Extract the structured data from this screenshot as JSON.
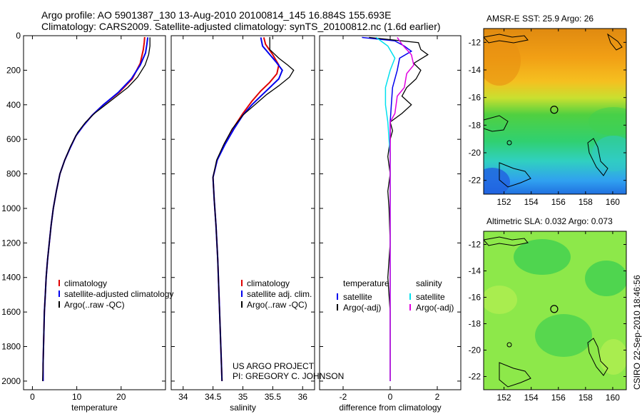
{
  "title_line1": "Argo profile: AO 5901387_130 13-Aug-2010 20100814_145 16.884S 155.693E",
  "title_line2": "Climatology: CARS2009. Satellite-adjusted climatology: synTS_20100812.nc (1.6d earlier)",
  "credit_line1": "US ARGO PROJECT",
  "credit_line2": "PI: GREGORY C. JOHNSON",
  "timestamp": "CSIRO 22-Sep-2010 18:46:56",
  "colors": {
    "climatology": "#e00000",
    "satellite": "#0000ee",
    "argo": "#000000",
    "satellite_sal": "#00e0ee",
    "argo_sal": "#e000e0"
  },
  "chart_data": [
    {
      "type": "line",
      "name": "temperature-profile",
      "xlabel": "temperature",
      "xlim": [
        -2,
        30
      ],
      "ylim": [
        2050,
        0
      ],
      "xticks": [
        0,
        10,
        20
      ],
      "yticks": [
        0,
        200,
        400,
        600,
        800,
        1000,
        1200,
        1400,
        1600,
        1800,
        2000
      ],
      "legend": {
        "entries": [
          "climatology",
          "satellite-adjusted climatology",
          "Argo(..raw -QC)"
        ],
        "colors": [
          "#e00000",
          "#0000ee",
          "#000000"
        ]
      },
      "series": [
        {
          "name": "climatology",
          "color": "#e00000",
          "width": 2,
          "points": [
            [
              25.3,
              8
            ],
            [
              25.2,
              40
            ],
            [
              25.0,
              80
            ],
            [
              24.3,
              160
            ],
            [
              22.5,
              250
            ],
            [
              19.5,
              330
            ],
            [
              16,
              400
            ],
            [
              13.5,
              460
            ],
            [
              11.5,
              520
            ],
            [
              9.8,
              580
            ],
            [
              8.5,
              650
            ],
            [
              7.3,
              720
            ],
            [
              6.2,
              800
            ],
            [
              5.4,
              900
            ],
            [
              4.7,
              1000
            ],
            [
              4.2,
              1100
            ],
            [
              3.8,
              1200
            ],
            [
              3.4,
              1300
            ],
            [
              3.1,
              1400
            ],
            [
              2.9,
              1500
            ],
            [
              2.7,
              1600
            ],
            [
              2.6,
              1700
            ],
            [
              2.5,
              1800
            ],
            [
              2.4,
              1900
            ],
            [
              2.4,
              2000
            ]
          ]
        },
        {
          "name": "satellite",
          "color": "#0000ee",
          "width": 2,
          "points": [
            [
              26.0,
              10
            ],
            [
              25.8,
              50
            ],
            [
              25.5,
              100
            ],
            [
              24.3,
              170
            ],
            [
              22.3,
              250
            ],
            [
              19.3,
              330
            ],
            [
              16,
              400
            ],
            [
              13.5,
              460
            ],
            [
              11.5,
              520
            ],
            [
              9.8,
              580
            ],
            [
              8.5,
              650
            ],
            [
              7.3,
              720
            ],
            [
              6.2,
              800
            ],
            [
              5.4,
              900
            ],
            [
              4.7,
              1000
            ],
            [
              4.2,
              1100
            ],
            [
              3.8,
              1200
            ],
            [
              3.4,
              1300
            ],
            [
              3.1,
              1400
            ],
            [
              2.9,
              1500
            ],
            [
              2.7,
              1600
            ],
            [
              2.6,
              1700
            ],
            [
              2.5,
              1800
            ],
            [
              2.4,
              1900
            ],
            [
              2.4,
              2000
            ]
          ]
        },
        {
          "name": "argo",
          "color": "#000000",
          "width": 1.3,
          "points": [
            [
              26.5,
              10
            ],
            [
              26.5,
              60
            ],
            [
              26.2,
              110
            ],
            [
              25.4,
              170
            ],
            [
              23.7,
              240
            ],
            [
              21.5,
              300
            ],
            [
              19,
              350
            ],
            [
              16.5,
              400
            ],
            [
              14,
              450
            ],
            [
              12,
              500
            ],
            [
              10.2,
              560
            ],
            [
              8.6,
              640
            ],
            [
              7.3,
              720
            ],
            [
              6.2,
              800
            ],
            [
              5.4,
              900
            ],
            [
              4.7,
              1000
            ],
            [
              4.2,
              1100
            ],
            [
              3.8,
              1200
            ],
            [
              3.4,
              1300
            ],
            [
              3.1,
              1400
            ],
            [
              2.9,
              1500
            ],
            [
              2.7,
              1600
            ],
            [
              2.6,
              1700
            ],
            [
              2.5,
              1800
            ],
            [
              2.4,
              1900
            ],
            [
              2.3,
              2000
            ]
          ]
        }
      ]
    },
    {
      "type": "line",
      "name": "salinity-profile",
      "xlabel": "salinity",
      "xlim": [
        33.8,
        36.2
      ],
      "ylim": [
        2050,
        0
      ],
      "xticks": [
        34,
        34.5,
        35,
        35.5,
        36
      ],
      "legend": {
        "entries": [
          "climatology",
          "satellite adj. clim.",
          "Argo(..raw -QC)"
        ],
        "colors": [
          "#e00000",
          "#0000ee",
          "#000000"
        ]
      },
      "series": [
        {
          "name": "climatology",
          "color": "#e00000",
          "width": 2,
          "points": [
            [
              35.35,
              10
            ],
            [
              35.38,
              50
            ],
            [
              35.5,
              110
            ],
            [
              35.6,
              170
            ],
            [
              35.57,
              220
            ],
            [
              35.45,
              270
            ],
            [
              35.3,
              320
            ],
            [
              35.15,
              380
            ],
            [
              35.0,
              450
            ],
            [
              34.85,
              530
            ],
            [
              34.7,
              620
            ],
            [
              34.57,
              720
            ],
            [
              34.5,
              820
            ],
            [
              34.52,
              950
            ],
            [
              34.55,
              1100
            ],
            [
              34.58,
              1300
            ],
            [
              34.6,
              1500
            ],
            [
              34.62,
              1700
            ],
            [
              34.64,
              1900
            ],
            [
              34.65,
              2000
            ]
          ]
        },
        {
          "name": "satellite",
          "color": "#0000ee",
          "width": 2,
          "points": [
            [
              35.3,
              10
            ],
            [
              35.33,
              60
            ],
            [
              35.55,
              150
            ],
            [
              35.66,
              200
            ],
            [
              35.6,
              250
            ],
            [
              35.45,
              300
            ],
            [
              35.3,
              350
            ],
            [
              35.15,
              400
            ],
            [
              35.0,
              460
            ],
            [
              34.85,
              540
            ],
            [
              34.7,
              630
            ],
            [
              34.57,
              720
            ],
            [
              34.5,
              820
            ],
            [
              34.52,
              950
            ],
            [
              34.55,
              1100
            ],
            [
              34.58,
              1300
            ],
            [
              34.6,
              1500
            ],
            [
              34.62,
              1700
            ],
            [
              34.64,
              1900
            ],
            [
              34.65,
              2000
            ]
          ]
        },
        {
          "name": "argo",
          "color": "#000000",
          "width": 1.3,
          "points": [
            [
              35.45,
              8
            ],
            [
              35.45,
              80
            ],
            [
              35.6,
              130
            ],
            [
              35.75,
              170
            ],
            [
              35.85,
              200
            ],
            [
              35.78,
              240
            ],
            [
              35.6,
              290
            ],
            [
              35.4,
              340
            ],
            [
              35.2,
              400
            ],
            [
              35.0,
              460
            ],
            [
              34.82,
              540
            ],
            [
              34.68,
              630
            ],
            [
              34.56,
              720
            ],
            [
              34.5,
              820
            ],
            [
              34.52,
              950
            ],
            [
              34.55,
              1100
            ],
            [
              34.58,
              1300
            ],
            [
              34.6,
              1500
            ],
            [
              34.62,
              1700
            ],
            [
              34.64,
              1900
            ],
            [
              34.65,
              2000
            ]
          ]
        }
      ]
    },
    {
      "type": "line",
      "name": "difference-profile",
      "xlabel": "difference from climatology",
      "xlim": [
        -3,
        3
      ],
      "ylim": [
        2050,
        0
      ],
      "xticks": [
        -2,
        0,
        2
      ],
      "legend": {
        "header_temperature": "temperature",
        "header_salinity": "salinity",
        "temperature_entries": [
          "satellite",
          "Argo(-adj)"
        ],
        "salinity_entries": [
          "satellite",
          "Argo(-adj)"
        ]
      },
      "series": [
        {
          "name": "temperature satellite",
          "color": "#0000ee",
          "width": 1.5,
          "points": [
            [
              -1.2,
              10
            ],
            [
              0.2,
              30
            ],
            [
              0.6,
              60
            ],
            [
              0.9,
              90
            ],
            [
              0.4,
              130
            ],
            [
              0.3,
              200
            ],
            [
              0.1,
              300
            ],
            [
              0.05,
              400
            ],
            [
              0,
              500
            ],
            [
              0,
              700
            ],
            [
              0,
              1000
            ],
            [
              0,
              1300
            ],
            [
              0,
              1600
            ],
            [
              0,
              2000
            ]
          ]
        },
        {
          "name": "temperature argo",
          "color": "#000000",
          "width": 1.3,
          "points": [
            [
              -0.9,
              10
            ],
            [
              1.2,
              40
            ],
            [
              1.3,
              80
            ],
            [
              1.6,
              110
            ],
            [
              1.0,
              160
            ],
            [
              1.3,
              200
            ],
            [
              1.1,
              250
            ],
            [
              0.7,
              300
            ],
            [
              0.5,
              350
            ],
            [
              0.9,
              400
            ],
            [
              0.5,
              450
            ],
            [
              0,
              500
            ],
            [
              0.1,
              550
            ],
            [
              0,
              600
            ],
            [
              -0.1,
              700
            ],
            [
              0,
              800
            ],
            [
              -0.1,
              900
            ],
            [
              -0.05,
              1000
            ],
            [
              0,
              1200
            ],
            [
              -0.1,
              1400
            ],
            [
              0,
              1600
            ],
            [
              0,
              2000
            ]
          ]
        },
        {
          "name": "salinity satellite",
          "color": "#00e0ee",
          "width": 1.5,
          "points": [
            [
              -0.6,
              10
            ],
            [
              -0.1,
              60
            ],
            [
              0.2,
              130
            ],
            [
              0,
              200
            ],
            [
              -0.2,
              300
            ],
            [
              -0.2,
              400
            ],
            [
              -0.1,
              500
            ],
            [
              0,
              700
            ],
            [
              0,
              1000
            ],
            [
              0,
              1400
            ],
            [
              0,
              2000
            ]
          ]
        },
        {
          "name": "salinity argo",
          "color": "#e000e0",
          "width": 1.5,
          "points": [
            [
              0.3,
              10
            ],
            [
              0.5,
              50
            ],
            [
              0.9,
              110
            ],
            [
              1.0,
              170
            ],
            [
              0.7,
              220
            ],
            [
              0.6,
              300
            ],
            [
              0.3,
              350
            ],
            [
              0.2,
              450
            ],
            [
              0,
              500
            ],
            [
              0,
              700
            ],
            [
              0,
              1000
            ],
            [
              0,
              2000
            ]
          ]
        }
      ]
    },
    {
      "type": "heatmap",
      "name": "sst-map",
      "title": "AMSR-E SST: 25.9 Argo: 26",
      "xlim": [
        150.5,
        161
      ],
      "ylim": [
        -23,
        -11
      ],
      "xticks": [
        152,
        154,
        156,
        158,
        160
      ],
      "yticks": [
        -12,
        -14,
        -16,
        -18,
        -20,
        -22
      ],
      "marker": [
        155.693,
        -16.884
      ]
    },
    {
      "type": "heatmap",
      "name": "sla-map",
      "title": "Altimetric SLA: 0.032 Argo: 0.073",
      "xlim": [
        150.5,
        161
      ],
      "ylim": [
        -23,
        -11
      ],
      "xticks": [
        152,
        154,
        156,
        158,
        160
      ],
      "yticks": [
        -12,
        -14,
        -16,
        -18,
        -20,
        -22
      ],
      "marker": [
        155.693,
        -16.884
      ]
    }
  ]
}
